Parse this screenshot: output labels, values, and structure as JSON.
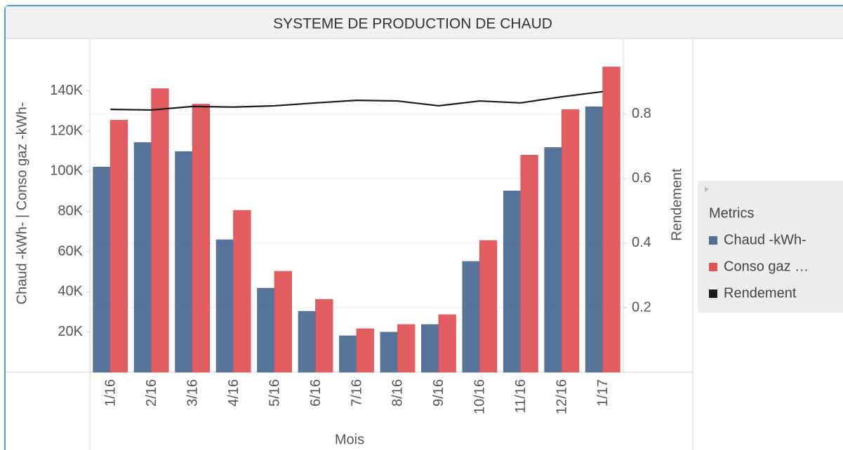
{
  "chart_data": {
    "type": "bar-line",
    "title": "SYSTEME DE PRODUCTION DE CHAUD",
    "x_label": "Mois",
    "y_label": "Chaud -kWh-  | Conso gaz -kWh-",
    "y2_label": "Rendement",
    "legend_title": "Metrics",
    "categories": [
      "1/16",
      "2/16",
      "3/16",
      "4/16",
      "5/16",
      "6/16",
      "7/16",
      "8/16",
      "9/16",
      "10/16",
      "11/16",
      "12/16",
      "1/17"
    ],
    "series": [
      {
        "name": "Chaud -kWh-",
        "color": "#4e6d95",
        "type": "bar",
        "values": [
          102100,
          114300,
          109800,
          65900,
          41800,
          30300,
          18100,
          19900,
          23700,
          55100,
          90200,
          111800,
          132100
        ]
      },
      {
        "name": "Conso gaz …",
        "color": "#e05457",
        "type": "bar",
        "values": [
          125400,
          141100,
          133400,
          80500,
          50200,
          36200,
          21600,
          23700,
          28600,
          65500,
          108000,
          130700,
          151900
        ]
      },
      {
        "name": "Rendement",
        "color": "#1a1a1a",
        "type": "line",
        "axis": "y2",
        "values": [
          0.815,
          0.813,
          0.824,
          0.822,
          0.826,
          0.835,
          0.843,
          0.841,
          0.826,
          0.841,
          0.835,
          0.854,
          0.87
        ]
      }
    ],
    "ylim": [
      0,
      165000
    ],
    "yticks": [
      {
        "value": 20000,
        "label": "20K"
      },
      {
        "value": 40000,
        "label": "40K"
      },
      {
        "value": 60000,
        "label": "60K"
      },
      {
        "value": 80000,
        "label": "80K"
      },
      {
        "value": 100000,
        "label": "100K"
      },
      {
        "value": 120000,
        "label": "120K"
      },
      {
        "value": 140000,
        "label": "140K"
      }
    ],
    "y2lim": [
      0,
      1.028
    ],
    "y2ticks": [
      0.2,
      0.4,
      0.6,
      0.8
    ],
    "grid": true
  }
}
